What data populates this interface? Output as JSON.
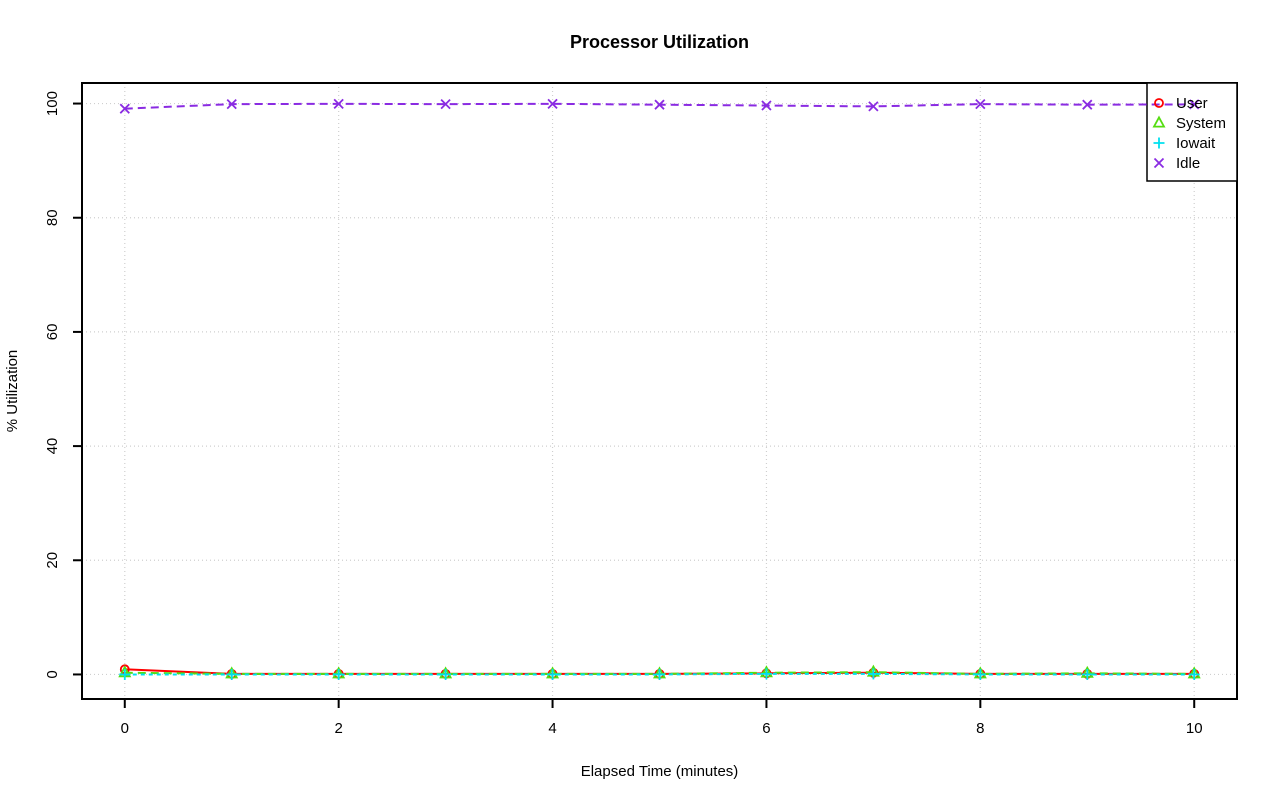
{
  "title": "Processor Utilization",
  "chart_data": {
    "type": "line",
    "title": "Processor Utilization",
    "xlabel": "Elapsed Time (minutes)",
    "ylabel": "% Utilization",
    "xlim": [
      0,
      10
    ],
    "ylim": [
      0,
      100
    ],
    "xticks": [
      0,
      2,
      4,
      6,
      8,
      10
    ],
    "yticks": [
      0,
      20,
      40,
      60,
      80,
      100
    ],
    "grid": true,
    "grid_style": "dotted",
    "legend_position": "top-right",
    "x": [
      0,
      1,
      2,
      3,
      4,
      5,
      6,
      7,
      8,
      9,
      10
    ],
    "series": [
      {
        "name": "User",
        "color": "#FF0000",
        "marker": "circle",
        "line": "solid",
        "values": [
          0.9,
          0.1,
          0.1,
          0.1,
          0.1,
          0.1,
          0.2,
          0.3,
          0.1,
          0.1,
          0.1
        ]
      },
      {
        "name": "System",
        "color": "#55DD11",
        "marker": "triangle",
        "line": "dashed",
        "values": [
          0.3,
          0.1,
          0.1,
          0.1,
          0.1,
          0.1,
          0.3,
          0.4,
          0.1,
          0.2,
          0.1
        ]
      },
      {
        "name": "Iowait",
        "color": "#00E0EE",
        "marker": "plus",
        "line": "shortdash",
        "values": [
          0,
          0,
          0,
          0,
          0,
          0,
          0.1,
          0.1,
          0,
          0,
          0
        ]
      },
      {
        "name": "Idle",
        "color": "#8A2BE2",
        "marker": "x",
        "line": "dashed",
        "values": [
          99.1,
          99.9,
          99.95,
          99.9,
          99.95,
          99.8,
          99.65,
          99.5,
          99.9,
          99.8,
          99.85
        ]
      }
    ],
    "colors": {
      "background": "#FFFFFF",
      "axis": "#000000",
      "grid": "#CFCFCF",
      "legend_border": "#000000",
      "legend_background": "#FFFFFF"
    }
  }
}
